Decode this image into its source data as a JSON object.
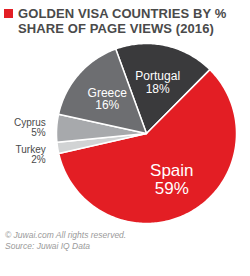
{
  "chart_data": {
    "type": "pie",
    "title": "GOLDEN VISA COUNTRIES BY % SHARE OF PAGE VIEWS (2016)",
    "categories": [
      "Portugal",
      "Spain",
      "Turkey",
      "Cyprus",
      "Greece"
    ],
    "values": [
      18,
      59,
      2,
      5,
      16
    ],
    "value_labels": [
      "18%",
      "59%",
      "2%",
      "5%",
      "16%"
    ],
    "colors": [
      "#3a3a3c",
      "#e31e24",
      "#d1d3d4",
      "#a7a9ac",
      "#6d6e71"
    ],
    "data_labels": true,
    "caption": "© Juwai.com All rights reserved.",
    "source": "Source: Juwai IQ Data"
  }
}
